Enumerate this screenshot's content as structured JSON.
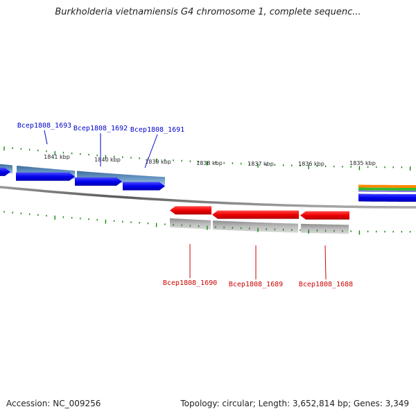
{
  "title": "Burkholderia vietnamiensis G4 chromosome 1, complete sequenc...",
  "footer": {
    "accession": "Accession: NC_009256",
    "summary": "Topology: circular; Length: 3,652,814 bp; Genes: 3,349"
  },
  "colors": {
    "forward_gene": "#0000ee",
    "reverse_gene": "#ee0000",
    "forward_label": "#0000cc",
    "reverse_label": "#cc0000",
    "forward_cds_band": "#5a88b8",
    "reverse_cds_band": "#b5b5b5",
    "tick": "#118811",
    "backbone": "#777777"
  },
  "ticks": [
    "1841 kbp",
    "1840 kbp",
    "1839 kbp",
    "1838 kbp",
    "1837 kbp",
    "1836 kbp",
    "1835 kbp"
  ],
  "forward_genes": [
    "Bcep1808_1693",
    "Bcep1808_1692",
    "Bcep1808_1691"
  ],
  "reverse_genes": [
    "Bcep1808_1690",
    "Bcep1808_1689",
    "Bcep1808_1688"
  ],
  "right_features": {
    "colors": [
      "#ff8800",
      "#33bb33",
      "#8877dd",
      "#0000ee"
    ]
  }
}
